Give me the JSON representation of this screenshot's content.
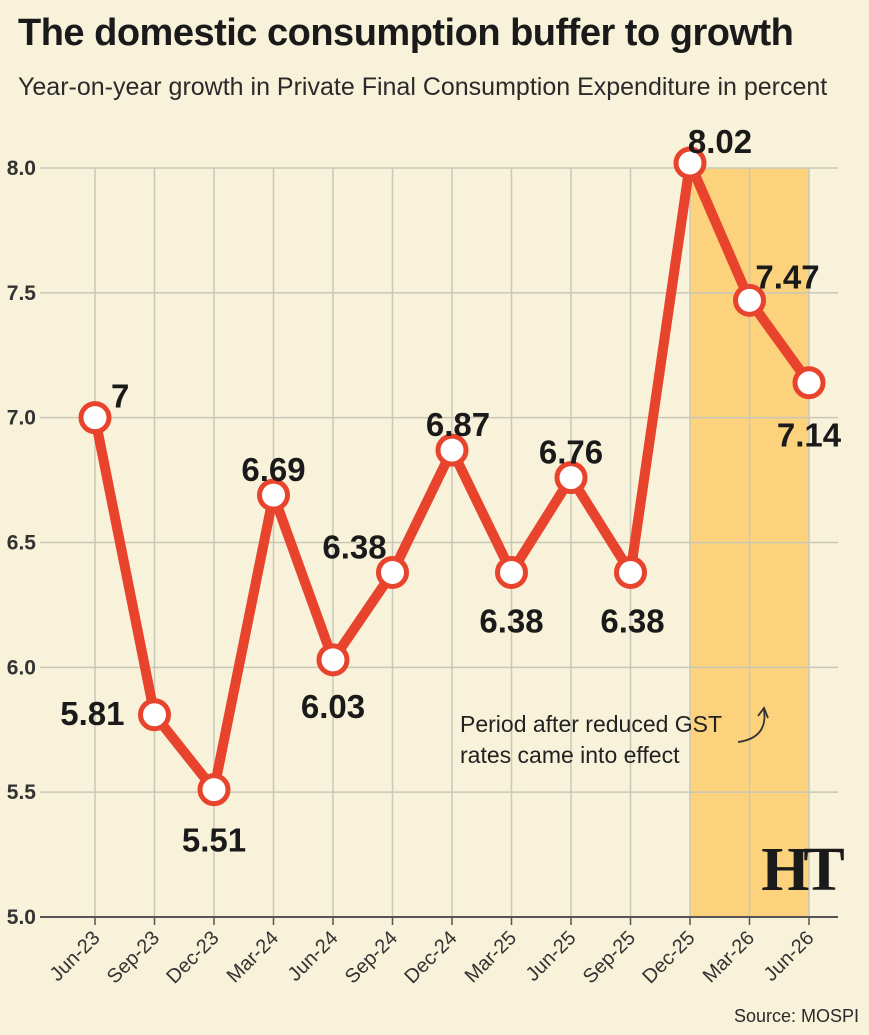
{
  "colors": {
    "background": "#f7f2d9",
    "line": "#e8432d",
    "highlight": "#fcd27c",
    "grid": "#c9c7b8",
    "text": "#1a1a1a"
  },
  "chart_data": {
    "type": "line",
    "title": "The domestic consumption buffer to growth",
    "subtitle": "Year-on-year growth in Private Final Consumption Expenditure in percent",
    "categories": [
      "Jun-23",
      "Sep-23",
      "Dec-23",
      "Mar-24",
      "Jun-24",
      "Sep-24",
      "Dec-24",
      "Mar-25",
      "Jun-25",
      "Sep-25",
      "Dec-25",
      "Mar-26",
      "Jun-26"
    ],
    "values": [
      7,
      5.81,
      5.51,
      6.69,
      6.03,
      6.38,
      6.87,
      6.38,
      6.76,
      6.38,
      8.02,
      7.47,
      7.14
    ],
    "data_labels": [
      "7",
      "5.81",
      "5.51",
      "6.69",
      "6.03",
      "6.38",
      "6.87",
      "6.38",
      "6.76",
      "6.38",
      "8.02",
      "7.47",
      "7.14"
    ],
    "ylim": [
      5.0,
      8.0
    ],
    "yticks": [
      "5.0",
      "5.5",
      "6.0",
      "6.5",
      "7.0",
      "7.5",
      "8.0"
    ],
    "grid": true,
    "highlight_range": [
      "Dec-25",
      "Jun-26"
    ],
    "annotation": {
      "line1": "Period after reduced GST",
      "line2": "rates came into effect"
    },
    "logo": "HT",
    "source": "Source: MOSPI"
  }
}
